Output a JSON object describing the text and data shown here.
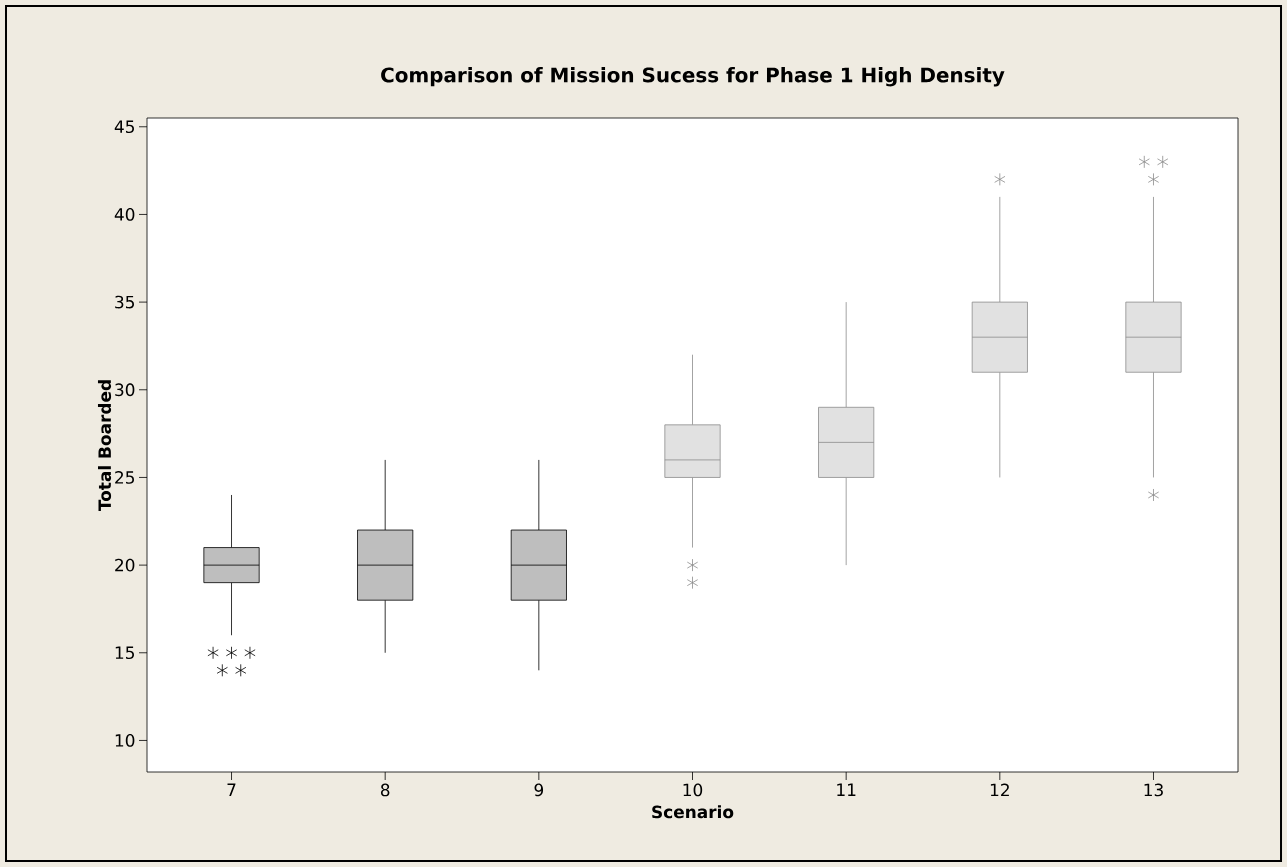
{
  "chart_data": {
    "type": "box",
    "title": "Comparison of Mission Sucess for Phase 1 High Density",
    "xlabel": "Scenario",
    "ylabel": "Total Boarded",
    "categories": [
      "7",
      "8",
      "9",
      "10",
      "11",
      "12",
      "13"
    ],
    "ylim": [
      8.2,
      45.5
    ],
    "yticks": [
      10,
      15,
      20,
      25,
      30,
      35,
      40,
      45
    ],
    "marker": "star",
    "grid": false,
    "series": [
      {
        "color": "#bebebe",
        "boxes": [
          {
            "low": 16,
            "q1": 19,
            "median": 20,
            "q3": 21,
            "high": 24,
            "outliers": [
              14,
              14,
              15,
              15,
              15
            ]
          },
          {
            "low": 15,
            "q1": 18,
            "median": 20,
            "q3": 22,
            "high": 26
          },
          {
            "low": 14,
            "q1": 18,
            "median": 20,
            "q3": 22,
            "high": 26
          },
          null,
          null,
          null,
          null
        ]
      },
      {
        "color": "#e1e1e1",
        "boxes": [
          null,
          null,
          null,
          {
            "low": 21,
            "q1": 25,
            "median": 26,
            "q3": 28,
            "high": 32,
            "outliers": [
              19,
              20
            ]
          },
          {
            "low": 20,
            "q1": 25,
            "median": 27,
            "q3": 29,
            "high": 35
          },
          {
            "low": 25,
            "q1": 31,
            "median": 33,
            "q3": 35,
            "high": 41,
            "outliers": [
              42
            ]
          },
          {
            "low": 25,
            "q1": 31,
            "median": 33,
            "q3": 35,
            "high": 41,
            "outliers": [
              24,
              42,
              43,
              43
            ]
          }
        ]
      }
    ]
  }
}
